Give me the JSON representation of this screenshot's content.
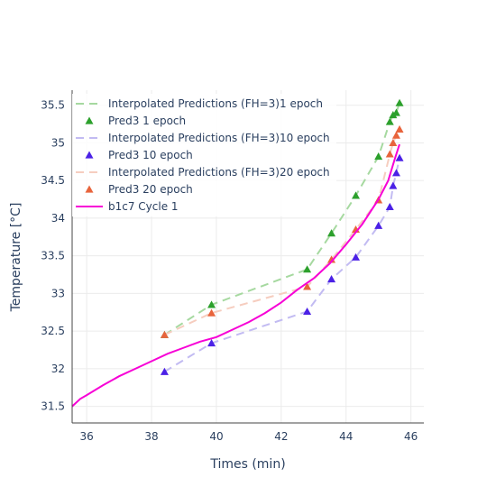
{
  "chart_data": {
    "type": "line",
    "xlabel": "Times (min)",
    "ylabel": "Temperature [°C]",
    "xlim": [
      35.55,
      46.4
    ],
    "ylim": [
      31.28,
      35.7
    ],
    "xticks": [
      36,
      38,
      40,
      42,
      44,
      46
    ],
    "xtick_labels": [
      "36",
      "38",
      "40",
      "42",
      "44",
      "46"
    ],
    "yticks": [
      31.5,
      32,
      32.5,
      33,
      33.5,
      34,
      34.5,
      35,
      35.5
    ],
    "ytick_labels": [
      "31.5",
      "32",
      "32.5",
      "33",
      "33.5",
      "34",
      "34.5",
      "35",
      "35.5"
    ],
    "grid": true,
    "legend_position": "top-left",
    "series": [
      {
        "name": "Interpolated Predictions (FH=3)1 epoch",
        "kind": "dashed-line",
        "color": "#a6d9a0",
        "x": [
          38.4,
          39.85,
          42.8,
          43.55,
          44.3,
          45.0,
          45.35,
          45.45,
          45.55,
          45.65
        ],
        "y": [
          32.45,
          32.85,
          33.32,
          33.8,
          34.3,
          34.82,
          35.28,
          35.37,
          35.4,
          35.53
        ]
      },
      {
        "name": "Pred3 1 epoch",
        "kind": "markers",
        "color": "#2ca02c",
        "x": [
          38.4,
          39.85,
          42.8,
          43.55,
          44.3,
          45.0,
          45.35,
          45.45,
          45.55,
          45.65
        ],
        "y": [
          32.45,
          32.85,
          33.32,
          33.8,
          34.3,
          34.82,
          35.28,
          35.37,
          35.4,
          35.53
        ]
      },
      {
        "name": "Interpolated Predictions (FH=3)10 epoch",
        "kind": "dashed-line",
        "color": "#c2bbf2",
        "x": [
          38.4,
          39.85,
          42.8,
          43.55,
          44.3,
          45.0,
          45.35,
          45.45,
          45.55,
          45.65
        ],
        "y": [
          31.96,
          32.34,
          32.76,
          33.19,
          33.48,
          33.9,
          34.15,
          34.43,
          34.6,
          34.8
        ]
      },
      {
        "name": "Pred3 10 epoch",
        "kind": "markers",
        "color": "#4b21e6",
        "x": [
          38.4,
          39.85,
          42.8,
          43.55,
          44.3,
          45.0,
          45.35,
          45.45,
          45.55,
          45.65
        ],
        "y": [
          31.96,
          32.34,
          32.76,
          33.19,
          33.48,
          33.9,
          34.15,
          34.43,
          34.6,
          34.8
        ]
      },
      {
        "name": "Interpolated Predictions (FH=3)20 epoch",
        "kind": "dashed-line",
        "color": "#f6cdbf",
        "x": [
          38.4,
          39.85,
          42.8,
          43.55,
          44.3,
          45.0,
          45.35,
          45.45,
          45.55,
          45.65
        ],
        "y": [
          32.45,
          32.74,
          33.09,
          33.45,
          33.85,
          34.24,
          34.85,
          35.0,
          35.1,
          35.18
        ]
      },
      {
        "name": "Pred3 20 epoch",
        "kind": "markers",
        "color": "#e8643c",
        "x": [
          38.4,
          39.85,
          42.8,
          43.55,
          44.3,
          45.0,
          45.35,
          45.45,
          45.55,
          45.65
        ],
        "y": [
          32.45,
          32.74,
          33.09,
          33.45,
          33.85,
          34.24,
          34.85,
          35.0,
          35.1,
          35.18
        ]
      },
      {
        "name": "b1c7 Cycle 1",
        "kind": "solid-line",
        "color": "#f700d6",
        "x": [
          35.55,
          35.8,
          36.0,
          36.5,
          37.0,
          37.5,
          38.0,
          38.5,
          39.0,
          39.5,
          40.0,
          40.5,
          41.0,
          41.5,
          42.0,
          42.5,
          43.0,
          43.5,
          44.0,
          44.5,
          45.0,
          45.3,
          45.5,
          45.65
        ],
        "y": [
          31.5,
          31.6,
          31.65,
          31.78,
          31.9,
          32.0,
          32.1,
          32.2,
          32.28,
          32.36,
          32.42,
          32.52,
          32.62,
          32.74,
          32.88,
          33.05,
          33.2,
          33.4,
          33.65,
          33.92,
          34.25,
          34.5,
          34.78,
          34.98
        ]
      }
    ]
  }
}
